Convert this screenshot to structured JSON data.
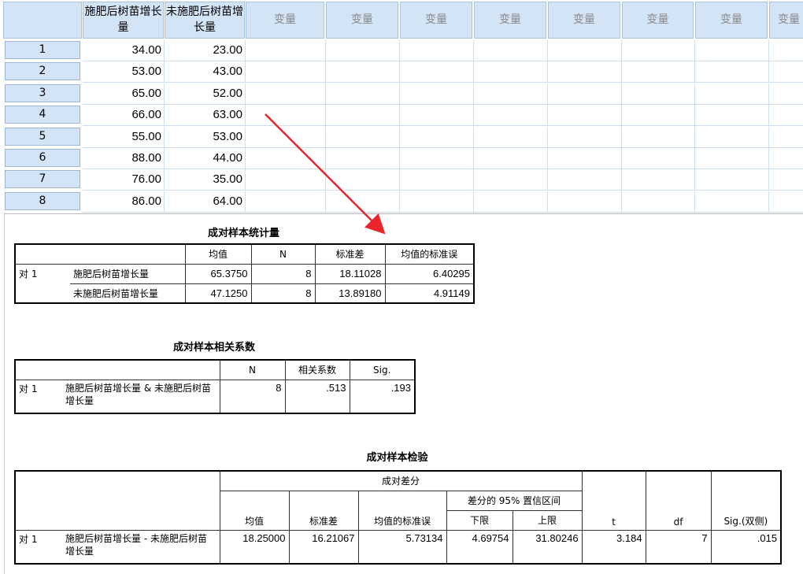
{
  "grid": {
    "columns": [
      "施肥后树苗增长量",
      "未施肥后树苗增长量"
    ],
    "empty_column_label": "变量",
    "rows": [
      {
        "n": "1",
        "a": "34.00",
        "b": "23.00"
      },
      {
        "n": "2",
        "a": "53.00",
        "b": "43.00"
      },
      {
        "n": "3",
        "a": "65.00",
        "b": "52.00"
      },
      {
        "n": "4",
        "a": "66.00",
        "b": "63.00"
      },
      {
        "n": "5",
        "a": "55.00",
        "b": "53.00"
      },
      {
        "n": "6",
        "a": "88.00",
        "b": "44.00"
      },
      {
        "n": "7",
        "a": "76.00",
        "b": "35.00"
      },
      {
        "n": "8",
        "a": "86.00",
        "b": "64.00"
      }
    ]
  },
  "annotation": {
    "arrow_color": "#e8262b"
  },
  "stats": {
    "title": "成对样本统计量",
    "headers": [
      "均值",
      "N",
      "标准差",
      "均值的标准误"
    ],
    "pair": "对 1",
    "rows": [
      {
        "label": "施肥后树苗增长量",
        "mean": "65.3750",
        "n": "8",
        "sd": "18.11028",
        "se": "6.40295"
      },
      {
        "label": "未施肥后树苗增长量",
        "mean": "47.1250",
        "n": "8",
        "sd": "13.89180",
        "se": "4.91149"
      }
    ]
  },
  "corr": {
    "title": "成对样本相关系数",
    "headers": [
      "N",
      "相关系数",
      "Sig."
    ],
    "pair": "对 1",
    "label": "施肥后树苗增长量 & 未施肥后树苗增长量",
    "n": "8",
    "r": ".513",
    "sig": ".193"
  },
  "test": {
    "title": "成对样本检验",
    "group": "成对差分",
    "ci": "差分的 95% 置信区间",
    "headers": [
      "均值",
      "标准差",
      "均值的标准误",
      "下限",
      "上限",
      "t",
      "df",
      "Sig.(双侧)"
    ],
    "pair": "对 1",
    "label": "施肥后树苗增长量 - 未施肥后树苗增长量",
    "values": [
      "18.25000",
      "16.21067",
      "5.73134",
      "4.69754",
      "31.80246",
      "3.184",
      "7",
      ".015"
    ]
  }
}
